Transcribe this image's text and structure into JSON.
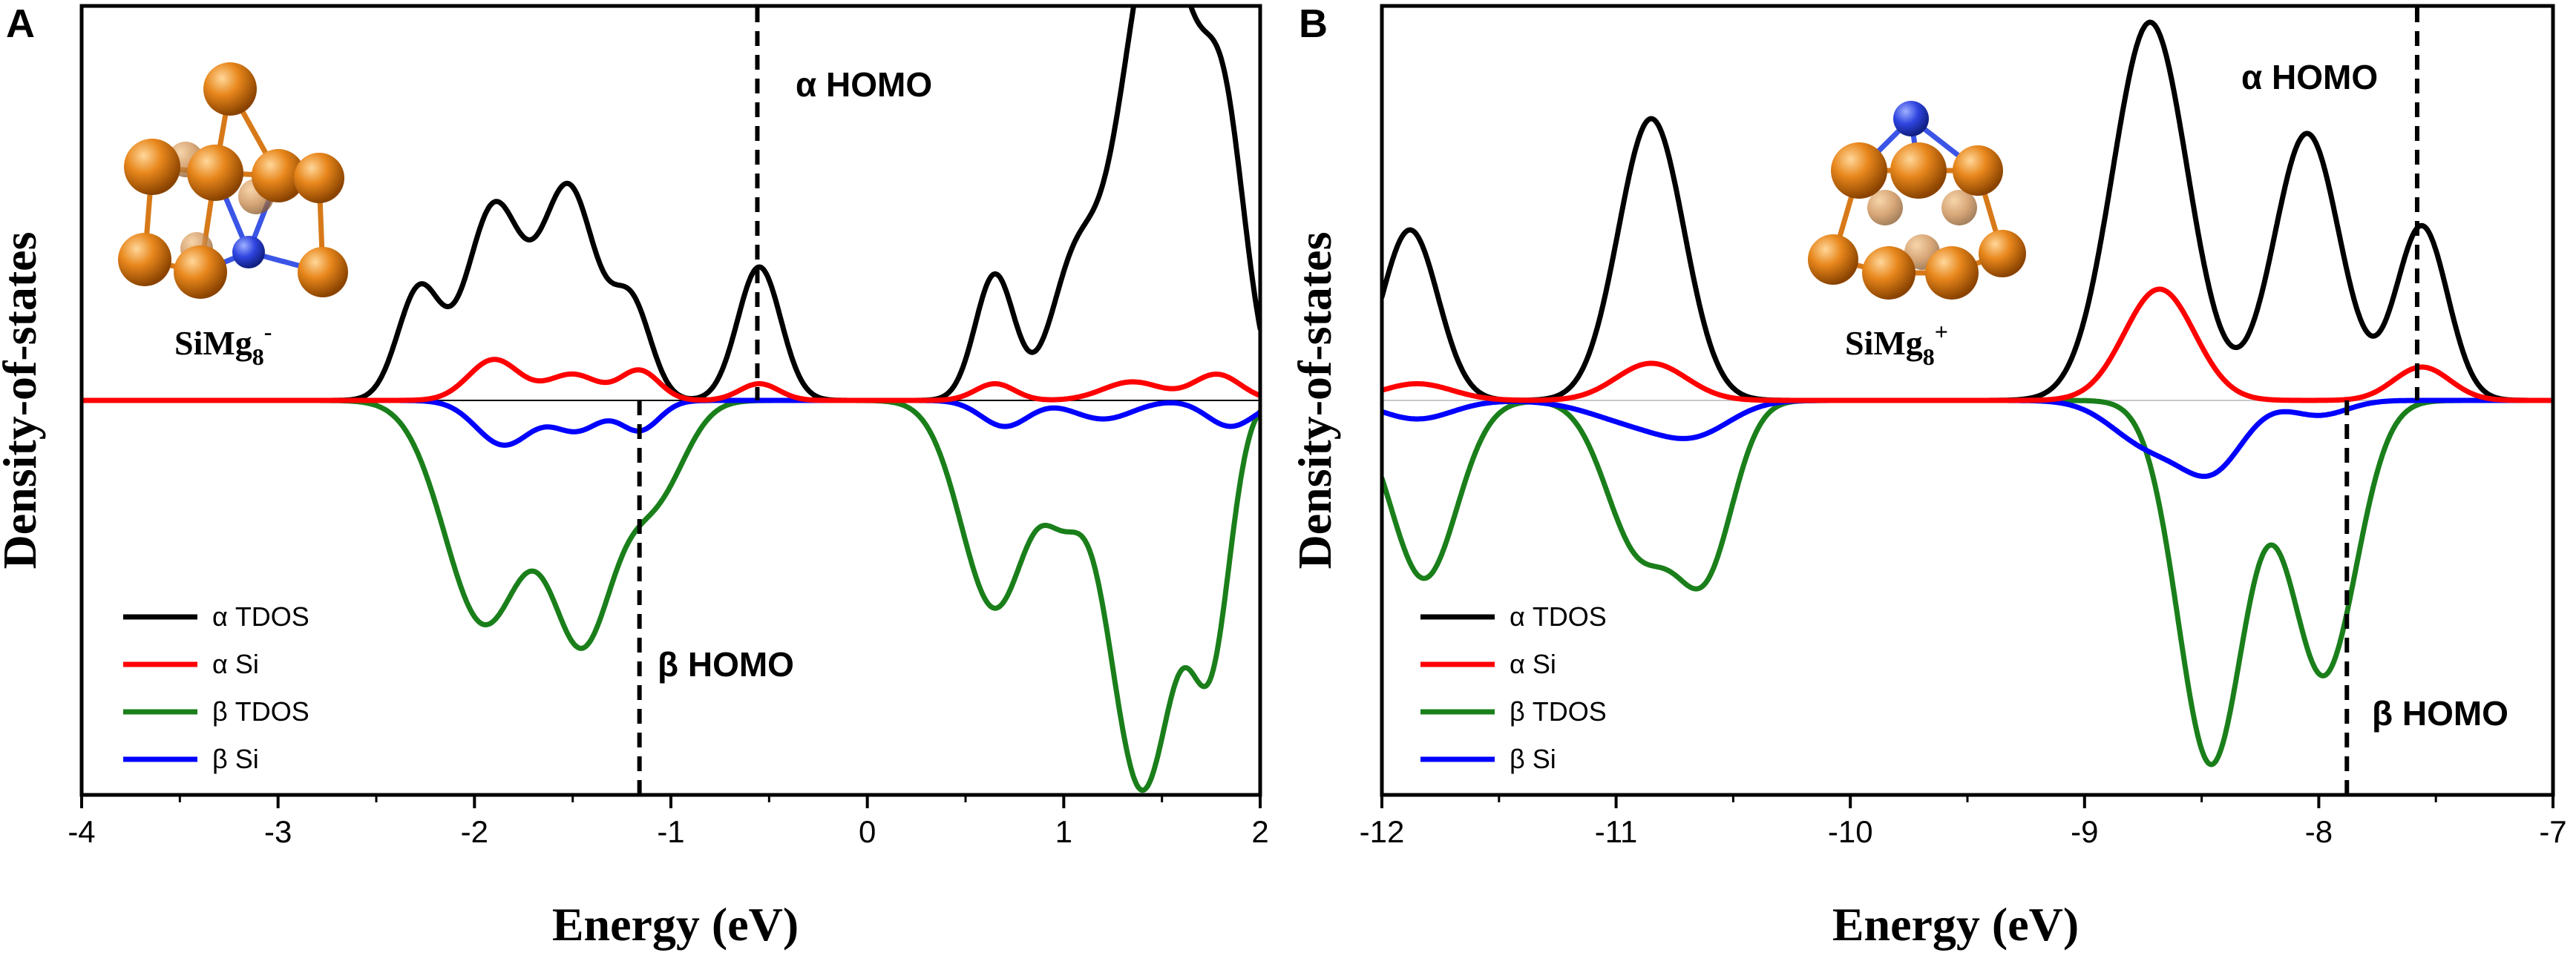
{
  "chart_data": [
    {
      "panel": "A",
      "type": "line",
      "xlabel": "Energy (eV)",
      "ylabel": "Density-of-states",
      "xlim": [
        -4,
        2
      ],
      "ylim": [
        -1.1,
        1.05
      ],
      "xticks": [
        -4,
        -3,
        -2,
        -1,
        0,
        1,
        2
      ],
      "xtick_labels": [
        "-4",
        "-3",
        "-2",
        "-1",
        "0",
        "1",
        "2"
      ],
      "grid": false,
      "legend_position": "bottom-left",
      "molecule_label": {
        "base": "SiMg",
        "sub": "8",
        "sup": "-"
      },
      "homo_markers": [
        {
          "label": "α HOMO",
          "x": -0.56,
          "spin": "alpha"
        },
        {
          "label": "β HOMO",
          "x": -1.16,
          "spin": "beta"
        }
      ],
      "series": [
        {
          "name": "α TDOS",
          "color": "#000000",
          "sign": 1,
          "baseline_from": -2.95,
          "baseline_to": 2.0,
          "peaks": [
            [
              -2.28,
              0.3,
              0.11
            ],
            [
              -1.9,
              0.52,
              0.14
            ],
            [
              -1.52,
              0.57,
              0.14
            ],
            [
              -1.2,
              0.25,
              0.1
            ],
            [
              -0.55,
              0.36,
              0.11
            ],
            [
              0.65,
              0.34,
              0.1
            ],
            [
              1.05,
              0.32,
              0.12
            ],
            [
              1.48,
              1.3,
              0.19
            ],
            [
              1.82,
              0.62,
              0.11
            ]
          ]
        },
        {
          "name": "α Si",
          "color": "#ff0000",
          "sign": 1,
          "baseline_from": -4.0,
          "baseline_to": 2.0,
          "peaks": [
            [
              -1.9,
              0.11,
              0.13
            ],
            [
              -1.5,
              0.07,
              0.13
            ],
            [
              -1.16,
              0.08,
              0.1
            ],
            [
              -0.55,
              0.045,
              0.1
            ],
            [
              0.65,
              0.045,
              0.1
            ],
            [
              1.35,
              0.05,
              0.15
            ],
            [
              1.78,
              0.07,
              0.12
            ]
          ]
        },
        {
          "name": "β TDOS",
          "color": "#1a7f1a",
          "sign": -1,
          "baseline_from": -4.0,
          "baseline_to": 2.0,
          "peaks": [
            [
              -1.95,
              0.6,
              0.2
            ],
            [
              -1.45,
              0.63,
              0.16
            ],
            [
              -1.08,
              0.25,
              0.15
            ],
            [
              0.65,
              0.56,
              0.17
            ],
            [
              1.0,
              0.22,
              0.1
            ],
            [
              1.4,
              1.05,
              0.17
            ],
            [
              1.75,
              0.62,
              0.1
            ]
          ]
        },
        {
          "name": "β Si",
          "color": "#0000ff",
          "sign": -1,
          "baseline_from": -4.0,
          "baseline_to": 2.0,
          "peaks": [
            [
              -1.85,
              0.12,
              0.14
            ],
            [
              -1.48,
              0.08,
              0.12
            ],
            [
              -1.16,
              0.08,
              0.1
            ],
            [
              0.7,
              0.07,
              0.12
            ],
            [
              1.2,
              0.05,
              0.15
            ],
            [
              1.85,
              0.07,
              0.12
            ]
          ]
        }
      ]
    },
    {
      "panel": "B",
      "type": "line",
      "xlabel": "Energy (eV)",
      "ylabel": "Density-of-states",
      "xlim": [
        -12,
        -7
      ],
      "ylim": [
        -1.1,
        1.05
      ],
      "xticks": [
        -12,
        -11,
        -10,
        -9,
        -8,
        -7
      ],
      "xtick_labels": [
        "-12",
        "-11",
        "-10",
        "-9",
        "-8",
        "-7"
      ],
      "grid": false,
      "legend_position": "bottom-left",
      "molecule_label": {
        "base": "SiMg",
        "sub": "8",
        "sup": "+"
      },
      "homo_markers": [
        {
          "label": "α HOMO",
          "x": -7.58,
          "spin": "alpha"
        },
        {
          "label": "β HOMO",
          "x": -7.88,
          "spin": "beta"
        }
      ],
      "series": [
        {
          "name": "α TDOS",
          "color": "#000000",
          "sign": 1,
          "baseline_from": -12.0,
          "baseline_to": -7.0,
          "peaks": [
            [
              -11.88,
              0.46,
              0.12
            ],
            [
              -10.85,
              0.76,
              0.14
            ],
            [
              -8.72,
              1.02,
              0.16
            ],
            [
              -8.05,
              0.72,
              0.14
            ],
            [
              -7.56,
              0.47,
              0.11
            ]
          ]
        },
        {
          "name": "α Si",
          "color": "#ff0000",
          "sign": 1,
          "baseline_from": -12.0,
          "baseline_to": -7.0,
          "peaks": [
            [
              -11.85,
              0.045,
              0.15
            ],
            [
              -10.85,
              0.1,
              0.15
            ],
            [
              -8.68,
              0.3,
              0.15
            ],
            [
              -7.56,
              0.09,
              0.12
            ]
          ]
        },
        {
          "name": "β TDOS",
          "color": "#1a7f1a",
          "sign": -1,
          "baseline_from": -12.0,
          "baseline_to": -7.0,
          "peaks": [
            [
              -11.82,
              0.48,
              0.14
            ],
            [
              -10.9,
              0.4,
              0.14
            ],
            [
              -10.62,
              0.44,
              0.12
            ],
            [
              -8.46,
              0.98,
              0.14
            ],
            [
              -7.98,
              0.74,
              0.14
            ]
          ]
        },
        {
          "name": "β Si",
          "color": "#0000ff",
          "sign": -1,
          "baseline_from": -12.0,
          "baseline_to": -7.0,
          "peaks": [
            [
              -11.85,
              0.05,
              0.15
            ],
            [
              -10.9,
              0.06,
              0.2
            ],
            [
              -10.65,
              0.07,
              0.15
            ],
            [
              -8.72,
              0.12,
              0.16
            ],
            [
              -8.45,
              0.17,
              0.13
            ],
            [
              -8.0,
              0.04,
              0.12
            ]
          ]
        }
      ]
    }
  ],
  "colors": {
    "axis": "#000000",
    "zero_line_A": "#000000",
    "zero_line_B": "#c8c8c8",
    "mg_atom": "#e07b10",
    "si_atom": "#2a3fd6",
    "bond": "#d77918"
  }
}
